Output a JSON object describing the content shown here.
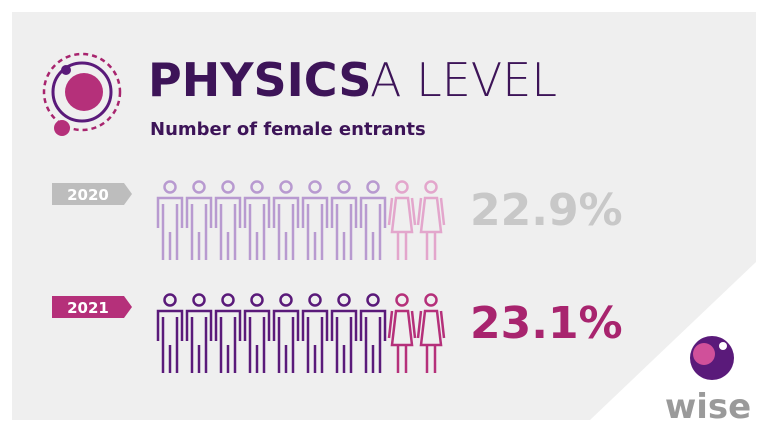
{
  "header": {
    "title_bold": "PHYSICS",
    "title_light": "A LEVEL",
    "subtitle": "Number of female entrants"
  },
  "rows": [
    {
      "year": "2020",
      "value": "22.9%"
    },
    {
      "year": "2021",
      "value": "23.1%"
    }
  ],
  "logo": {
    "text": "wise"
  }
}
